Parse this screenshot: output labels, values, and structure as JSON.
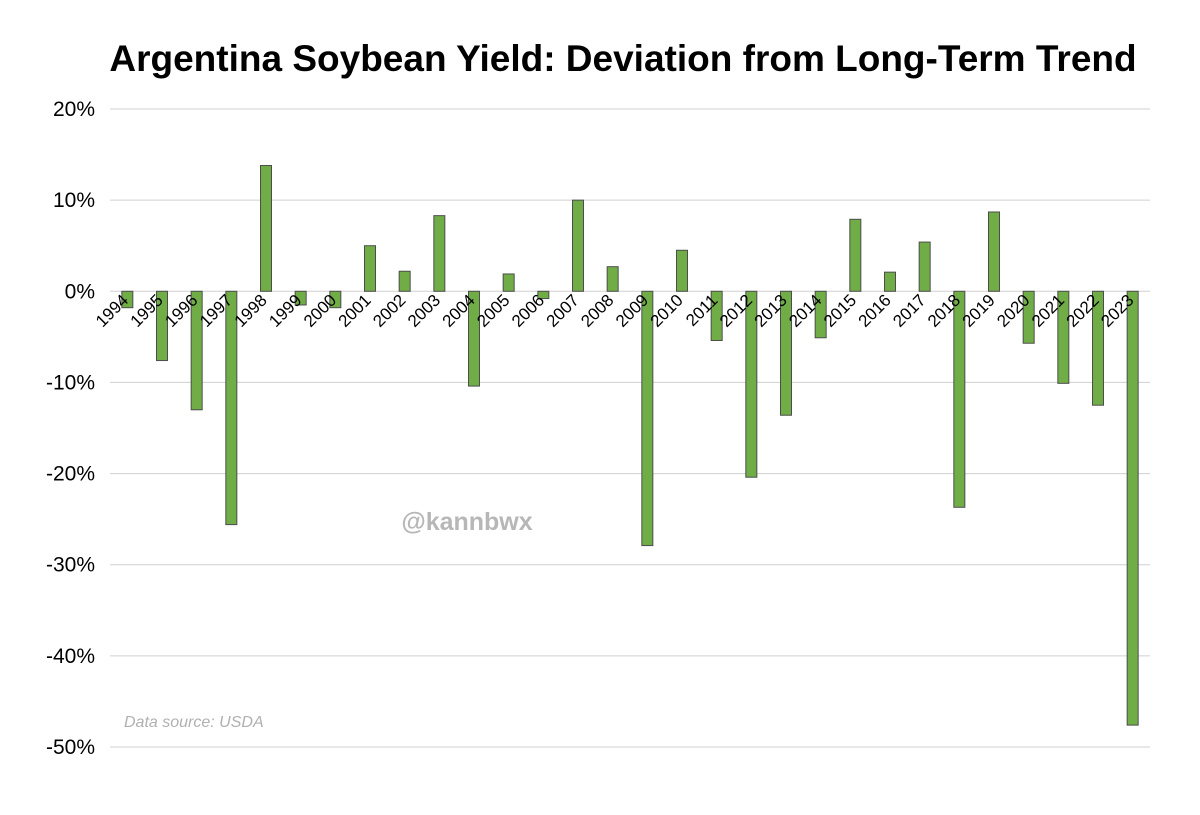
{
  "chart_data": {
    "type": "bar",
    "title": "Argentina Soybean Yield: Deviation from Long-Term Trend",
    "xlabel": "",
    "ylabel": "",
    "ylim": [
      -50,
      20
    ],
    "y_ticks": [
      20,
      10,
      0,
      -10,
      -20,
      -30,
      -40,
      -50
    ],
    "y_tick_labels": [
      "20%",
      "10%",
      "0%",
      "-10%",
      "-20%",
      "-30%",
      "-40%",
      "-50%"
    ],
    "grid": true,
    "bar_color": "#70ad47",
    "bar_edge_color": "#4d4d4d",
    "categories": [
      "1994",
      "1995",
      "1996",
      "1997",
      "1998",
      "1999",
      "2000",
      "2001",
      "2002",
      "2003",
      "2004",
      "2005",
      "2006",
      "2007",
      "2008",
      "2009",
      "2010",
      "2011",
      "2012",
      "2013",
      "2014",
      "2015",
      "2016",
      "2017",
      "2018",
      "2019",
      "2020",
      "2021",
      "2022",
      "2023"
    ],
    "values": [
      -1.8,
      -7.6,
      -13.0,
      -25.6,
      13.8,
      -1.5,
      -1.8,
      5.0,
      2.2,
      8.3,
      -10.4,
      1.9,
      -0.8,
      10.0,
      2.7,
      -27.9,
      4.5,
      -5.4,
      -20.4,
      -13.6,
      -5.1,
      7.9,
      2.1,
      5.4,
      -23.7,
      8.7,
      -5.7,
      -10.1,
      -12.5,
      -47.6
    ],
    "watermark": "@kannbwx",
    "source_note": "Data source: USDA"
  }
}
